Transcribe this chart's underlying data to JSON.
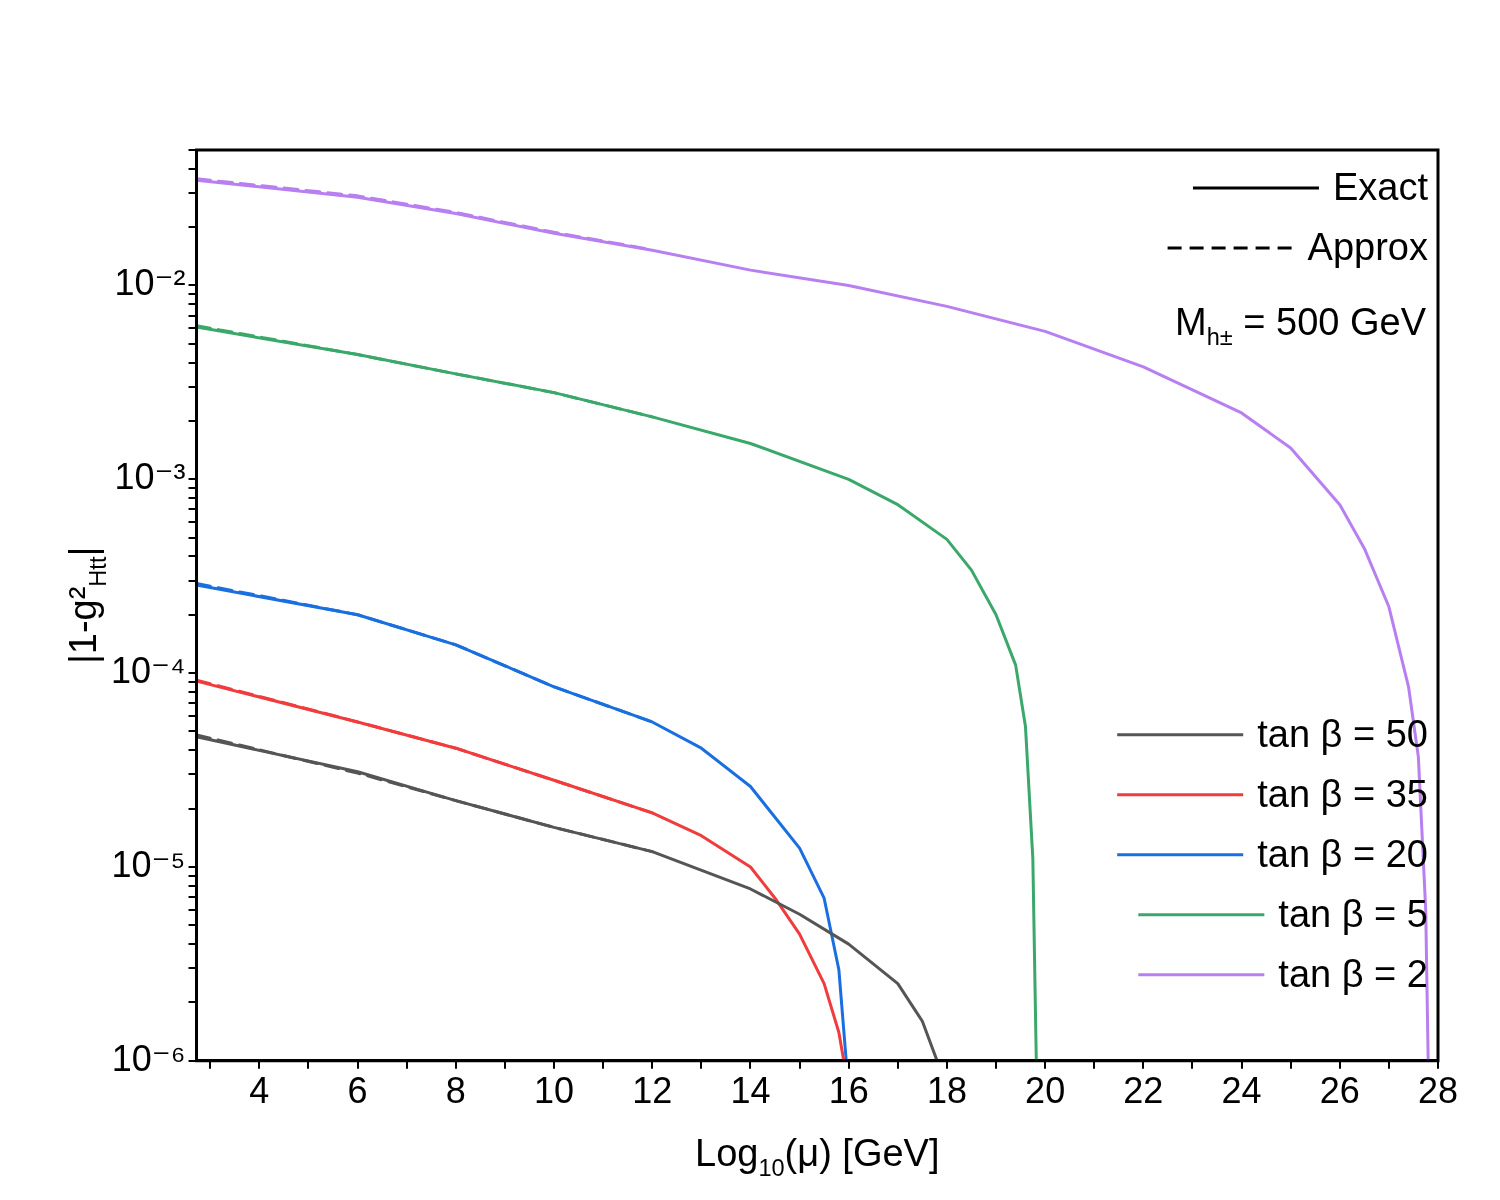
{
  "chart_data": {
    "type": "line",
    "xlabel": "Log$_{10}$(μ) [GeV]",
    "ylabel": "|1-g²$_{Htt}$|",
    "log": true,
    "grid": false,
    "legend": "right",
    "marker": "none",
    "line_style": "solid",
    "xlim": [
      2.72,
      28
    ],
    "ylim": [
      1e-06,
      0.05
    ],
    "xticks": [
      4,
      6,
      8,
      10,
      12,
      14,
      16,
      18,
      20,
      22,
      24,
      26,
      28,
      {
        "value": 3,
        "label": null
      },
      {
        "value": 5,
        "label": null
      },
      {
        "value": 7,
        "label": null
      },
      {
        "value": 9,
        "label": null
      },
      {
        "value": 11,
        "label": null
      },
      {
        "value": 13,
        "label": null
      },
      {
        "value": 15,
        "label": null
      },
      {
        "value": 17,
        "label": null
      },
      {
        "value": 19,
        "label": null
      },
      {
        "value": 21,
        "label": null
      },
      {
        "value": 23,
        "label": null
      },
      {
        "value": 25,
        "label": null
      },
      {
        "value": 27,
        "label": null
      }
    ],
    "yticks": [
      {
        "value": 1e-06,
        "label": "10⁻⁶"
      },
      {
        "value": 1e-05,
        "label": "10⁻⁵"
      },
      {
        "value": 0.0001,
        "label": "10⁻⁴"
      },
      {
        "value": 0.001,
        "label": "10⁻³"
      },
      {
        "value": 0.01,
        "label": "10⁻²"
      },
      {
        "value": 2e-06,
        "label": null
      },
      {
        "value": 3e-06,
        "label": null
      },
      {
        "value": 4e-06,
        "label": null
      },
      {
        "value": 5e-06,
        "label": null
      },
      {
        "value": 6e-06,
        "label": null
      },
      {
        "value": 7e-06,
        "label": null
      },
      {
        "value": 8e-06,
        "label": null
      },
      {
        "value": 9e-06,
        "label": null
      },
      {
        "value": 2e-05,
        "label": null
      },
      {
        "value": 3e-05,
        "label": null
      },
      {
        "value": 4e-05,
        "label": null
      },
      {
        "value": 5e-05,
        "label": null
      },
      {
        "value": 6e-05,
        "label": null
      },
      {
        "value": 7e-05,
        "label": null
      },
      {
        "value": 8e-05,
        "label": null
      },
      {
        "value": 9e-05,
        "label": null
      },
      {
        "value": 0.0002,
        "label": null
      },
      {
        "value": 0.0003,
        "label": null
      },
      {
        "value": 0.0004,
        "label": null
      },
      {
        "value": 0.0005,
        "label": null
      },
      {
        "value": 0.0006,
        "label": null
      },
      {
        "value": 0.0007,
        "label": null
      },
      {
        "value": 0.0008,
        "label": null
      },
      {
        "value": 0.0009,
        "label": null
      },
      {
        "value": 0.002,
        "label": null
      },
      {
        "value": 0.003,
        "label": null
      },
      {
        "value": 0.004,
        "label": null
      },
      {
        "value": 0.005,
        "label": null
      },
      {
        "value": 0.006,
        "label": null
      },
      {
        "value": 0.007,
        "label": null
      },
      {
        "value": 0.008,
        "label": null
      },
      {
        "value": 0.009,
        "label": null
      },
      {
        "value": 0.02,
        "label": null
      },
      {
        "value": 0.03,
        "label": null
      },
      {
        "value": 0.04,
        "label": null
      },
      {
        "value": 0.05,
        "label": null
      }
    ],
    "annotations": [
      "M$_{h±}$ = 500 GeV"
    ],
    "series": [
      {
        "name": "Exact",
        "color": "#000000",
        "line_style": "solid"
      },
      {
        "name": "Approx",
        "color": "#000000",
        "line_style": "dashed"
      },
      {
        "name": "tan β = 50",
        "color": "#555555",
        "x": [
          2.72,
          6,
          8,
          10,
          12,
          14,
          15,
          16,
          17,
          17.5,
          17.8
        ],
        "values": [
          4.7e-05,
          3.1e-05,
          2.2e-05,
          1.6e-05,
          1.2e-05,
          7.7e-06,
          5.7e-06,
          4e-06,
          2.5e-06,
          1.6e-06,
          1e-06
        ]
      },
      {
        "name": "tan β = 35",
        "color": "#f03c3c",
        "x": [
          2.72,
          6,
          8,
          10,
          12,
          13,
          14,
          14.5,
          15,
          15.5,
          15.8,
          15.9
        ],
        "values": [
          9.1e-05,
          5.6e-05,
          4.1e-05,
          2.8e-05,
          1.9e-05,
          1.45e-05,
          1e-05,
          6.9e-06,
          4.5e-06,
          2.5e-06,
          1.4e-06,
          1e-06
        ]
      },
      {
        "name": "tan β = 20",
        "color": "#1a6fe0",
        "x": [
          2.72,
          6,
          8,
          10,
          12,
          13,
          14,
          15,
          15.5,
          15.8,
          15.95
        ],
        "values": [
          0.000285,
          0.0002,
          0.00014,
          8.5e-05,
          5.6e-05,
          4.1e-05,
          2.6e-05,
          1.25e-05,
          6.9e-06,
          2.95e-06,
          1e-06
        ]
      },
      {
        "name": "tan β = 5",
        "color": "#3aa86a",
        "x": [
          2.72,
          6,
          8,
          10,
          12,
          14,
          16,
          17,
          18,
          18.5,
          19,
          19.4,
          19.6,
          19.75,
          19.82
        ],
        "values": [
          0.0061,
          0.0044,
          0.0035,
          0.0028,
          0.0021,
          0.00153,
          0.001,
          0.00074,
          0.00049,
          0.00034,
          0.0002,
          0.00011,
          5.3e-05,
          1.1e-05,
          1e-06
        ]
      },
      {
        "name": "tan β = 2",
        "color": "#b77ff0",
        "x": [
          2.72,
          6,
          8,
          10,
          12,
          14,
          16,
          18,
          20,
          22,
          24,
          25,
          26,
          26.5,
          27,
          27.4,
          27.6,
          27.75,
          27.8
        ],
        "values": [
          0.0349,
          0.0285,
          0.0235,
          0.0186,
          0.0152,
          0.012,
          0.01,
          0.0078,
          0.0058,
          0.0038,
          0.0022,
          0.00145,
          0.00074,
          0.00044,
          0.00022,
          8.5e-05,
          3.7e-05,
          6e-06,
          1e-06
        ]
      },
      {
        "color": "#555555",
        "line_style": "dashed",
        "x": [
          2.72,
          6,
          8,
          10,
          12
        ],
        "values": [
          4.8e-05,
          3.05e-05,
          2.2e-05,
          1.6e-05,
          1.2e-05
        ]
      },
      {
        "color": "#f03c3c",
        "line_style": "dashed",
        "x": [
          2.72,
          6,
          8,
          10,
          12
        ],
        "values": [
          9.2e-05,
          5.6e-05,
          4.1e-05,
          2.8e-05,
          1.9e-05
        ]
      },
      {
        "color": "#1a6fe0",
        "line_style": "dashed",
        "x": [
          2.72,
          6,
          8,
          10,
          12
        ],
        "values": [
          0.00029,
          0.0002,
          0.00014,
          8.5e-05,
          5.6e-05
        ]
      },
      {
        "color": "#3aa86a",
        "line_style": "dashed",
        "x": [
          2.72,
          6,
          8,
          10,
          12
        ],
        "values": [
          0.0062,
          0.0044,
          0.0035,
          0.0028,
          0.0021
        ]
      },
      {
        "color": "#b77ff0",
        "line_style": "dashed",
        "x": [
          2.72,
          6,
          8,
          10,
          12
        ],
        "values": [
          0.0355,
          0.029,
          0.0238,
          0.0188,
          0.0153
        ]
      }
    ]
  }
}
